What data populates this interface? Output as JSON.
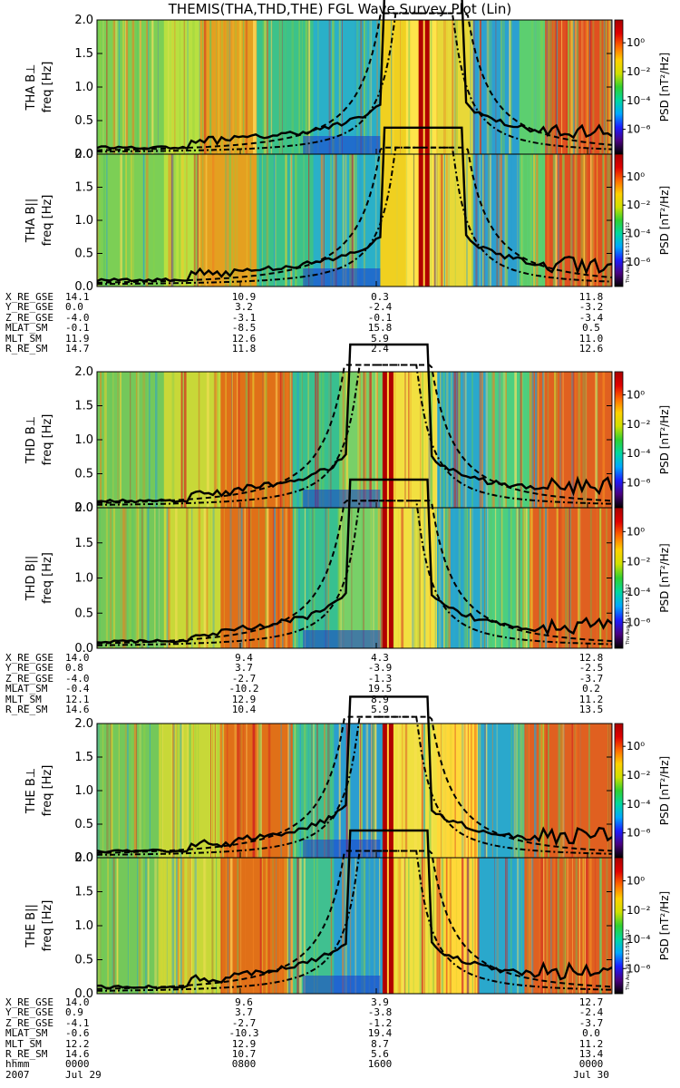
{
  "title": "THEMIS(THA,THD,THE) FGL Wave Survey Plot (Lin)",
  "timestamp_stamps": [
    "Thu Aug 30 18:13:57 2012",
    "Thu Aug 30 18:13:58 2012",
    "Thu Aug 30 18:13:59 2012"
  ],
  "colorbar": {
    "label": "PSD [nT²/Hz]",
    "tick_labels": [
      "10⁰",
      "10⁻²",
      "10⁻⁴",
      "10⁻⁶"
    ],
    "scale": "log",
    "colors": [
      "#000000",
      "#4a0080",
      "#1c1cff",
      "#00a8ff",
      "#00d8a0",
      "#30d030",
      "#d0e000",
      "#ffd000",
      "#ff6a00",
      "#e00000",
      "#a80000"
    ]
  },
  "probes": [
    {
      "id": "THA",
      "panels": [
        {
          "ylabel_probe": "THA B⊥",
          "ylabel_unit": "freq [Hz]"
        },
        {
          "ylabel_probe": "THA B||",
          "ylabel_unit": "freq [Hz]"
        }
      ],
      "ephemeris": {
        "labels": [
          "X_RE_GSE",
          "Y_RE_GSE",
          "Z_RE_GSE",
          "MLAT_SM",
          "MLT_SM",
          "R_RE_SM"
        ],
        "columns": [
          [
            "14.1",
            "0.0",
            "-4.0",
            "-0.1",
            "11.9",
            "14.7"
          ],
          [
            "10.9",
            "3.2",
            "-3.1",
            "-8.5",
            "12.6",
            "11.8"
          ],
          [
            "0.3",
            "-2.4",
            "-0.1",
            "15.8",
            "5.9",
            "2.4"
          ],
          [
            "11.8",
            "-3.2",
            "-3.4",
            "0.5",
            "11.0",
            "12.6"
          ]
        ]
      }
    },
    {
      "id": "THD",
      "panels": [
        {
          "ylabel_probe": "THD B⊥",
          "ylabel_unit": "freq [Hz]"
        },
        {
          "ylabel_probe": "THD B||",
          "ylabel_unit": "freq [Hz]"
        }
      ],
      "ephemeris": {
        "labels": [
          "X_RE_GSE",
          "Y_RE_GSE",
          "Z_RE_GSE",
          "MLAT_SM",
          "MLT_SM",
          "R_RE_SM"
        ],
        "columns": [
          [
            "14.0",
            "0.8",
            "-4.0",
            "-0.4",
            "12.1",
            "14.6"
          ],
          [
            "9.4",
            "3.7",
            "-2.7",
            "-10.2",
            "12.9",
            "10.4"
          ],
          [
            "4.3",
            "-3.9",
            "-1.3",
            "19.5",
            "8.9",
            "5.9"
          ],
          [
            "12.8",
            "-2.5",
            "-3.7",
            "0.2",
            "11.2",
            "13.5"
          ]
        ]
      }
    },
    {
      "id": "THE",
      "panels": [
        {
          "ylabel_probe": "THE B⊥",
          "ylabel_unit": "freq [Hz]"
        },
        {
          "ylabel_probe": "THE B||",
          "ylabel_unit": "freq [Hz]"
        }
      ],
      "ephemeris": {
        "labels": [
          "X_RE_GSE",
          "Y_RE_GSE",
          "Z_RE_GSE",
          "MLAT_SM",
          "MLT_SM",
          "R_RE_SM",
          "hhmm",
          "2007"
        ],
        "columns": [
          [
            "14.0",
            "0.9",
            "-4.1",
            "-0.6",
            "12.2",
            "14.6",
            "0000",
            "Jul 29"
          ],
          [
            "9.6",
            "3.7",
            "-2.7",
            "-10.3",
            "12.9",
            "10.7",
            "0800",
            ""
          ],
          [
            "3.9",
            "-3.8",
            "-1.2",
            "19.4",
            "8.7",
            "5.6",
            "1600",
            ""
          ],
          [
            "12.7",
            "-2.4",
            "-3.7",
            "0.0",
            "11.2",
            "13.4",
            "0000",
            "Jul 30"
          ]
        ]
      }
    }
  ],
  "chart_data": {
    "type": "heatmap",
    "title": "THEMIS(THA,THD,THE) FGL Wave Survey Plot (Lin)",
    "x_axis": {
      "ticks": [
        "0000",
        "0800",
        "1600",
        "0000"
      ],
      "dates": [
        "Jul 29",
        "Jul 30"
      ],
      "year": "2007",
      "range_hours": [
        0,
        24
      ]
    },
    "y_axis": {
      "label": "freq [Hz]",
      "range": [
        0.0,
        2.0
      ],
      "ticks": [
        "0.0",
        "0.5",
        "1.0",
        "1.5",
        "2.0"
      ]
    },
    "z_axis": {
      "label": "PSD [nT²/Hz]",
      "scale": "log",
      "ticks": [
        "10⁰",
        "10⁻²",
        "10⁻⁴",
        "10⁻⁶"
      ]
    },
    "panels": [
      "THA B⊥",
      "THA B||",
      "THD B⊥",
      "THD B||",
      "THE B⊥",
      "THE B||"
    ],
    "overlay_lines": [
      "solid",
      "dashed",
      "dash-dot"
    ]
  }
}
